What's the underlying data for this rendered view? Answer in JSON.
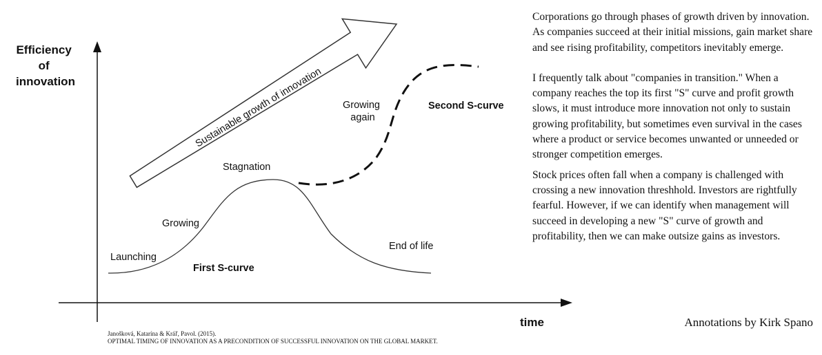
{
  "diagram": {
    "y_axis_label": [
      "Efficiency",
      "of",
      "innovation"
    ],
    "x_axis_label": "time",
    "arrow_label": "Sustainable growth of innovation",
    "stages": {
      "launching": "Launching",
      "growing": "Growing",
      "stagnation": "Stagnation",
      "end_of_life": "End of life",
      "growing_again": [
        "Growing",
        "again"
      ]
    },
    "first_curve_label": "First S-curve",
    "second_curve_label": "Second S-curve"
  },
  "citation": {
    "authors": "Janošková, Katarína & Kráľ, Pavol. (2015).",
    "title": "OPTIMAL TIMING OF INNOVATION AS A PRECONDITION OF SUCCESSFUL INNOVATION ON THE GLOBAL MARKET."
  },
  "annotations": {
    "paragraphs": [
      "Corporations go through phases of growth driven by innovation. As companies succeed at their initial missions, gain market share and see rising profitability, competitors inevitably emerge.",
      "I frequently talk about \"companies in transition.\" When a company reaches the top its first \"S\" curve and profit growth slows, it must introduce more innovation not only to sustain growing profitability, but sometimes even survival in the cases where a product or service becomes unwanted or unneeded or stronger competition emerges.",
      "Stock prices often fall when a company is challenged with crossing a new innovation threshhold. Investors are rightfully fearful. However, if we can identify when management will succeed in developing a new \"S\" curve of growth and profitability, then we can make outsize gains as investors."
    ],
    "credit": "Annotations by Kirk Spano"
  }
}
